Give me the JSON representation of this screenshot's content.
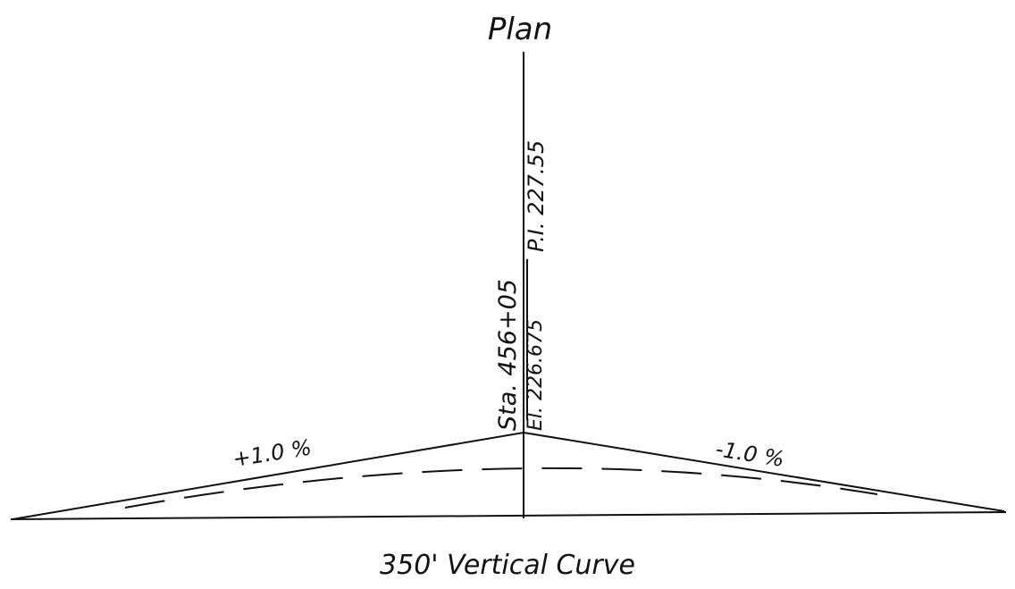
{
  "title": "Plan",
  "station": "Sta. 456+05",
  "pi": "P.I. 227.55",
  "elevation": "El. 226.675",
  "left_grade": "+1.0 %",
  "right_grade": "-1.0 %",
  "caption": "350' Vertical Curve"
}
